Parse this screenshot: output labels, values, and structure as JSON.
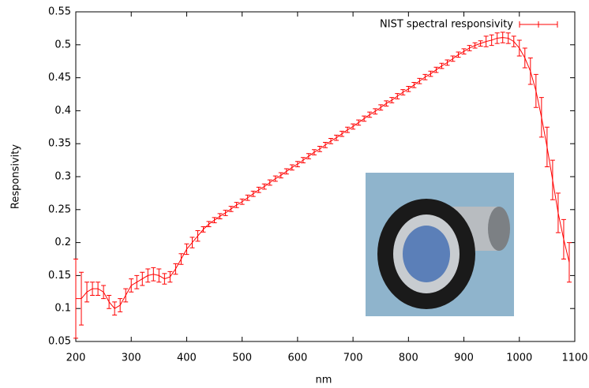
{
  "chart_data": {
    "type": "errorbar",
    "xlabel": "nm",
    "ylabel": "Responsivity",
    "xlim": [
      200,
      1100
    ],
    "xticks": [
      200,
      300,
      400,
      500,
      600,
      700,
      800,
      900,
      1000,
      1100
    ],
    "ylim": [
      0.05,
      0.55
    ],
    "yticks": [
      0.05,
      0.1,
      0.15,
      0.2,
      0.25,
      0.3,
      0.35,
      0.4,
      0.45,
      0.5,
      0.55
    ],
    "legend": "top-right",
    "x": [
      200,
      210,
      220,
      230,
      240,
      250,
      260,
      270,
      280,
      290,
      300,
      310,
      320,
      330,
      340,
      350,
      360,
      370,
      380,
      390,
      400,
      410,
      420,
      430,
      440,
      450,
      460,
      470,
      480,
      490,
      500,
      510,
      520,
      530,
      540,
      550,
      560,
      570,
      580,
      590,
      600,
      610,
      620,
      630,
      640,
      650,
      660,
      670,
      680,
      690,
      700,
      710,
      720,
      730,
      740,
      750,
      760,
      770,
      780,
      790,
      800,
      810,
      820,
      830,
      840,
      850,
      860,
      870,
      880,
      890,
      900,
      910,
      920,
      930,
      940,
      950,
      960,
      970,
      980,
      990,
      1000,
      1010,
      1020,
      1030,
      1040,
      1050,
      1060,
      1070,
      1080,
      1090
    ],
    "series": [
      {
        "name": "NIST spectral responsivity",
        "color": "#ff0000",
        "values": [
          0.115,
          0.115,
          0.125,
          0.13,
          0.13,
          0.125,
          0.11,
          0.1,
          0.105,
          0.12,
          0.135,
          0.14,
          0.145,
          0.15,
          0.152,
          0.15,
          0.145,
          0.148,
          0.16,
          0.175,
          0.19,
          0.2,
          0.21,
          0.22,
          0.228,
          0.234,
          0.24,
          0.245,
          0.251,
          0.257,
          0.262,
          0.268,
          0.274,
          0.28,
          0.285,
          0.291,
          0.297,
          0.302,
          0.308,
          0.314,
          0.319,
          0.325,
          0.331,
          0.337,
          0.342,
          0.348,
          0.354,
          0.359,
          0.365,
          0.371,
          0.376,
          0.382,
          0.388,
          0.394,
          0.399,
          0.405,
          0.411,
          0.416,
          0.422,
          0.428,
          0.433,
          0.439,
          0.445,
          0.451,
          0.456,
          0.462,
          0.468,
          0.473,
          0.479,
          0.485,
          0.49,
          0.495,
          0.499,
          0.502,
          0.505,
          0.507,
          0.51,
          0.511,
          0.51,
          0.505,
          0.495,
          0.48,
          0.46,
          0.43,
          0.39,
          0.345,
          0.295,
          0.245,
          0.205,
          0.17
        ],
        "errors": [
          0.06,
          0.04,
          0.015,
          0.01,
          0.01,
          0.01,
          0.01,
          0.01,
          0.01,
          0.01,
          0.01,
          0.01,
          0.01,
          0.01,
          0.01,
          0.01,
          0.008,
          0.008,
          0.008,
          0.008,
          0.008,
          0.008,
          0.008,
          0.004,
          0.004,
          0.004,
          0.004,
          0.004,
          0.004,
          0.004,
          0.004,
          0.004,
          0.004,
          0.004,
          0.004,
          0.004,
          0.004,
          0.004,
          0.004,
          0.004,
          0.004,
          0.004,
          0.004,
          0.004,
          0.004,
          0.004,
          0.004,
          0.004,
          0.004,
          0.004,
          0.004,
          0.004,
          0.004,
          0.004,
          0.004,
          0.004,
          0.004,
          0.004,
          0.004,
          0.004,
          0.004,
          0.004,
          0.004,
          0.004,
          0.004,
          0.004,
          0.004,
          0.004,
          0.004,
          0.004,
          0.004,
          0.004,
          0.004,
          0.004,
          0.008,
          0.008,
          0.008,
          0.008,
          0.008,
          0.008,
          0.012,
          0.015,
          0.02,
          0.025,
          0.03,
          0.03,
          0.03,
          0.03,
          0.03,
          0.03
        ]
      }
    ]
  }
}
